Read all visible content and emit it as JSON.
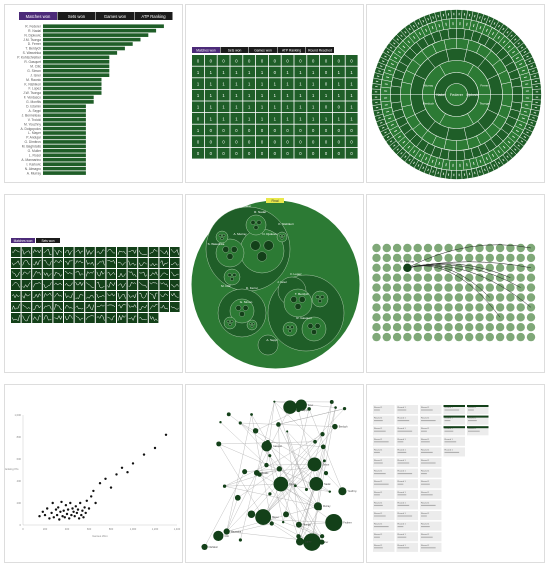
{
  "colors": {
    "green": "#1f5e28",
    "green_dark": "#134019",
    "green_mid": "#2c7a34",
    "green_light": "#9bbf94",
    "purple": "#4b2a78",
    "black": "#1b1b1b",
    "grey_bg": "#ececec",
    "highlight": "#e8e84a"
  },
  "panel1": {
    "tabs": [
      "Matches won",
      "Sets won",
      "Games won",
      "ATP Ranking"
    ],
    "active_tab": 0,
    "players": [
      "R. Federer",
      "R. Nadal",
      "N. Djokovic",
      "J.M. Tsonga",
      "D. Ferrer",
      "T. Berdych",
      "S. Wawrinka",
      "P. Kohlschreiber",
      "R. Gasquet",
      "M. Cilic",
      "G. Simon",
      "J. Isner",
      "M. Raonic",
      "K. Nishikori",
      "F. Lopez",
      "J.W. Tsonga",
      "F. Verdasco",
      "G. Monfils",
      "D. Istomin",
      "A. Seppi",
      "J. Benneteau",
      "V. Troicki",
      "M. Youzhny",
      "A. Dolgopolov",
      "L. Mayer",
      "P. Andujar",
      "G. Dimitrov",
      "M. Baghdatis",
      "G. Muller",
      "L. Rosol",
      "A. Mannarino",
      "I. Karlovic",
      "N. Almagro",
      "A. Murray"
    ],
    "values": [
      62,
      58,
      54,
      50,
      46,
      42,
      38,
      34,
      34,
      34,
      34,
      34,
      30,
      30,
      30,
      30,
      26,
      26,
      22,
      22,
      22,
      22,
      22,
      22,
      22,
      22,
      22,
      22,
      22,
      22,
      22,
      22,
      22,
      22
    ]
  },
  "panel2": {
    "tabs": [
      "Matches won",
      "Sets won",
      "Games won",
      "ATP Ranking",
      "Round Reached"
    ],
    "active_tab": 0,
    "grid": [
      [
        "0",
        "0",
        "0",
        "0",
        "0",
        "0",
        "0",
        "0",
        "0",
        "0",
        "0",
        "0",
        "0"
      ],
      [
        "1",
        "1",
        "1",
        "1",
        "1",
        "1",
        "0",
        "1",
        "1",
        "1",
        "0",
        "1",
        "1"
      ],
      [
        "1",
        "1",
        "1",
        "1",
        "1",
        "1",
        "1",
        "1",
        "1",
        "1",
        "0",
        "1",
        "1"
      ],
      [
        "1",
        "1",
        "1",
        "1",
        "1",
        "1",
        "1",
        "1",
        "1",
        "1",
        "1",
        "1",
        "1"
      ],
      [
        "1",
        "1",
        "1",
        "1",
        "1",
        "1",
        "1",
        "1",
        "1",
        "1",
        "0",
        "0",
        "1"
      ],
      [
        "0",
        "1",
        "1",
        "1",
        "1",
        "1",
        "1",
        "1",
        "1",
        "1",
        "1",
        "1",
        "1"
      ],
      [
        "1",
        "0",
        "0",
        "0",
        "0",
        "0",
        "0",
        "0",
        "0",
        "0",
        "0",
        "0",
        "0"
      ],
      [
        "0",
        "0",
        "0",
        "0",
        "0",
        "0",
        "0",
        "0",
        "0",
        "0",
        "0",
        "0",
        "0"
      ],
      [
        "0",
        "0",
        "0",
        "0",
        "0",
        "0",
        "0",
        "0",
        "0",
        "0",
        "0",
        "0",
        "0"
      ]
    ]
  },
  "panel3": {
    "center_label": "Federer",
    "ring2": [
      "Nadal",
      "Djokovic"
    ],
    "ring3": [
      "Murray",
      "Ferrer",
      "Berdych",
      "Tsonga"
    ]
  },
  "panel4": {
    "tabs": [
      "Matches won",
      "Sets won"
    ],
    "active_tab": 0,
    "rows": 7,
    "cols": 16
  },
  "panel5": {
    "labels": [
      "R. Federer",
      "R. Nadal",
      "N. Djokovic",
      "A. Murray",
      "D. Ferrer",
      "T. Berdych",
      "R. Gasquet",
      "J. Isner",
      "G. Simon",
      "M. Cilic",
      "S. Wawrinka",
      "K. Nishikori",
      "F. Lopez",
      "A. Seppi"
    ],
    "highlight_label": "Final"
  },
  "panel6": {
    "rows": 10,
    "cols": 16,
    "hub_label": "R. Federer"
  },
  "panel7": {
    "xticks": [
      "0",
      "200",
      "400",
      "600",
      "800",
      "1,000",
      "1,200",
      "1,400"
    ],
    "yticks": [
      "0",
      "200",
      "400",
      "600",
      "800",
      "1,000"
    ],
    "xlabel": "Games Won",
    "ylabel": "Ranking Pts",
    "points": [
      [
        150,
        80
      ],
      [
        180,
        120
      ],
      [
        200,
        90
      ],
      [
        220,
        150
      ],
      [
        240,
        60
      ],
      [
        260,
        110
      ],
      [
        270,
        200
      ],
      [
        280,
        70
      ],
      [
        300,
        140
      ],
      [
        310,
        90
      ],
      [
        320,
        160
      ],
      [
        330,
        50
      ],
      [
        340,
        120
      ],
      [
        350,
        210
      ],
      [
        360,
        80
      ],
      [
        370,
        130
      ],
      [
        380,
        70
      ],
      [
        390,
        180
      ],
      [
        400,
        100
      ],
      [
        410,
        140
      ],
      [
        420,
        60
      ],
      [
        430,
        200
      ],
      [
        440,
        90
      ],
      [
        450,
        150
      ],
      [
        460,
        120
      ],
      [
        470,
        80
      ],
      [
        480,
        170
      ],
      [
        490,
        110
      ],
      [
        500,
        140
      ],
      [
        510,
        60
      ],
      [
        520,
        200
      ],
      [
        530,
        90
      ],
      [
        540,
        130
      ],
      [
        550,
        70
      ],
      [
        560,
        160
      ],
      [
        570,
        110
      ],
      [
        580,
        220
      ],
      [
        600,
        150
      ],
      [
        620,
        260
      ],
      [
        640,
        310
      ],
      [
        660,
        200
      ],
      [
        700,
        380
      ],
      [
        750,
        420
      ],
      [
        800,
        340
      ],
      [
        850,
        460
      ],
      [
        900,
        520
      ],
      [
        950,
        480
      ],
      [
        1000,
        560
      ],
      [
        1100,
        640
      ],
      [
        1200,
        700
      ],
      [
        1300,
        820
      ]
    ]
  },
  "panel8": {
    "node_labels": [
      "Federer",
      "Nadal",
      "Djokovic",
      "Murray",
      "Ferrer",
      "Berdych",
      "Tsonga",
      "Gasquet",
      "Isner",
      "Simon",
      "Cilic",
      "Wawrinka",
      "Raonic",
      "Nishikori",
      "Lopez",
      "Seppi",
      "Mayer",
      "Monfils",
      "Youzhny",
      "Rosol"
    ]
  },
  "panel9": {
    "card_title": "Round 1",
    "rows": 14,
    "cols": 5
  }
}
